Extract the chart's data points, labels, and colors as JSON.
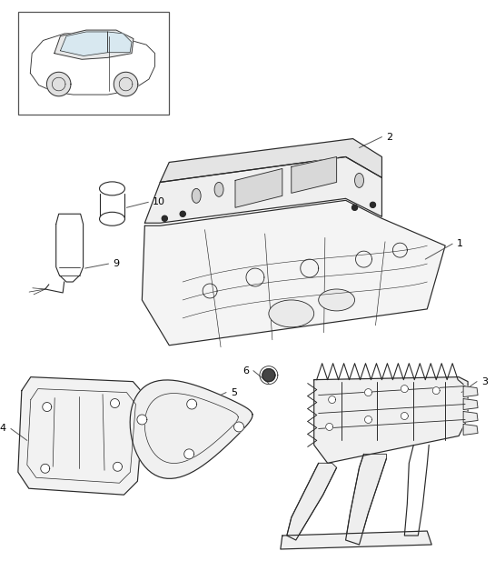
{
  "bg_color": "#ffffff",
  "line_color": "#2a2a2a",
  "fig_width": 5.45,
  "fig_height": 6.28,
  "dpi": 100
}
